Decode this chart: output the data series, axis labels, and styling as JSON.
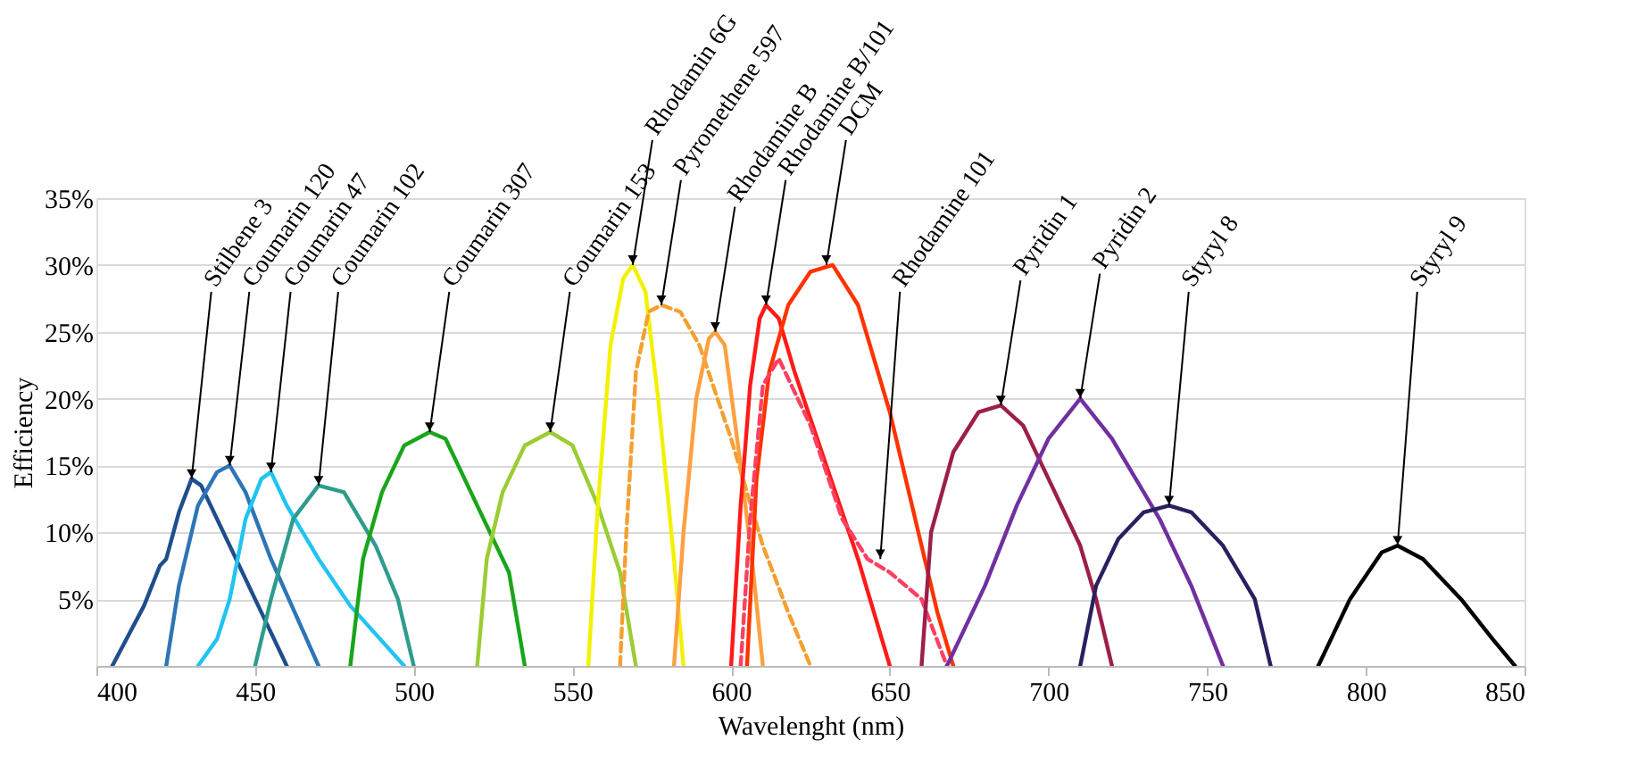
{
  "chart_data": {
    "type": "line",
    "xlabel": "Wavelenght (nm)",
    "ylabel": "Efficiency",
    "xlim": [
      400,
      850
    ],
    "xticks": [
      400,
      450,
      500,
      550,
      600,
      650,
      700,
      750,
      800,
      850
    ],
    "ylim": [
      0,
      35
    ],
    "yticks": [
      {
        "value": 0,
        "label": null
      },
      {
        "value": 5,
        "label": "5%"
      },
      {
        "value": 10,
        "label": "10%"
      },
      {
        "value": 15,
        "label": "15%"
      },
      {
        "value": 20,
        "label": "20%"
      },
      {
        "value": 25,
        "label": "25%"
      },
      {
        "value": 30,
        "label": "30%"
      },
      {
        "value": 35,
        "label": "35%"
      }
    ],
    "grid": "y",
    "legend": false,
    "marker": "none",
    "series": [
      {
        "color": "#1f4e8c",
        "x": [
          405,
          415,
          420,
          422,
          426,
          430,
          433,
          440,
          450,
          460
        ],
        "values": [
          0,
          4.5,
          7.5,
          8,
          11.5,
          14,
          13.5,
          10,
          5,
          0
        ]
      },
      {
        "color": "#2e75b6",
        "x": [
          422,
          426,
          432,
          438,
          442,
          447,
          455,
          470
        ],
        "values": [
          0,
          6,
          12,
          14.5,
          15,
          13,
          8,
          0
        ]
      },
      {
        "color": "#21c4f0",
        "x": [
          432,
          438,
          442,
          447,
          452,
          455,
          460,
          470,
          480,
          497
        ],
        "values": [
          0,
          2,
          5,
          11,
          14,
          14.5,
          12,
          8,
          4.5,
          0
        ]
      },
      {
        "color": "#2e9c8c",
        "x": [
          450,
          455,
          462,
          470,
          478,
          488,
          495,
          500
        ],
        "values": [
          0,
          5,
          11,
          13.5,
          13,
          9,
          5,
          0
        ]
      },
      {
        "color": "#1aa51a",
        "x": [
          480,
          484,
          490,
          497,
          505,
          510,
          520,
          530,
          535
        ],
        "values": [
          0,
          8,
          13,
          16.5,
          17.5,
          17,
          12,
          7,
          0
        ]
      },
      {
        "color": "#9acd32",
        "x": [
          520,
          523,
          528,
          535,
          543,
          550,
          558,
          565,
          570
        ],
        "values": [
          0,
          8,
          13,
          16.5,
          17.5,
          16.5,
          12,
          7,
          0
        ]
      },
      {
        "color": "#f2f200",
        "x": [
          555,
          558,
          562,
          566,
          569,
          573,
          577,
          582,
          585
        ],
        "values": [
          0,
          12,
          24,
          29,
          30,
          28,
          20,
          8,
          0
        ]
      },
      {
        "color": "#f4a030",
        "line_style": "dashed",
        "x": [
          565,
          567,
          570,
          574,
          578,
          584,
          590,
          600,
          610,
          618,
          625
        ],
        "values": [
          0,
          10,
          22,
          26.5,
          27,
          26.5,
          24,
          17,
          9,
          4,
          0
        ]
      },
      {
        "color": "#ffa040",
        "x": [
          582,
          585,
          589,
          593,
          595,
          598,
          603,
          607,
          610
        ],
        "values": [
          0,
          10,
          20,
          24.5,
          25,
          24,
          15,
          7,
          0
        ]
      },
      {
        "color": "#ff1a1a",
        "x": [
          600,
          603,
          606,
          609,
          611,
          615,
          620,
          630,
          640,
          650
        ],
        "values": [
          0,
          12,
          21,
          26,
          27,
          26,
          22,
          15,
          8,
          0
        ]
      },
      {
        "color": "#ff3300",
        "x": [
          605,
          608,
          612,
          618,
          625,
          632,
          640,
          650,
          660,
          665,
          670
        ],
        "values": [
          0,
          14,
          22,
          27,
          29.5,
          30,
          27,
          19,
          9,
          4,
          0
        ]
      },
      {
        "color": "#ff4060",
        "line_style": "dashed",
        "x": [
          603,
          606,
          610,
          615,
          625,
          635,
          643,
          650,
          660,
          668
        ],
        "values": [
          0,
          11,
          21,
          23,
          18,
          11,
          8,
          7,
          5,
          0
        ]
      },
      {
        "color": "#9c1f4a",
        "x": [
          660,
          663,
          670,
          678,
          685,
          692,
          700,
          710,
          715,
          720
        ],
        "values": [
          0,
          10,
          16,
          19,
          19.5,
          18,
          14,
          9,
          5,
          0
        ]
      },
      {
        "color": "#7030a0",
        "x": [
          668,
          680,
          690,
          700,
          710,
          720,
          735,
          745,
          755
        ],
        "values": [
          0,
          6,
          12,
          17,
          20,
          17,
          11,
          6,
          0
        ]
      },
      {
        "color": "#2a2060",
        "x": [
          710,
          715,
          722,
          730,
          738,
          745,
          755,
          765,
          770
        ],
        "values": [
          0,
          6,
          9.5,
          11.5,
          12,
          11.5,
          9,
          5,
          0
        ]
      },
      {
        "color": "#000000",
        "x": [
          785,
          795,
          805,
          810,
          818,
          830,
          840,
          847
        ],
        "values": [
          0,
          5,
          8.5,
          9,
          8,
          5,
          2,
          0
        ]
      }
    ],
    "annotations": [
      {
        "text": "Stilbene 3",
        "x": 430,
        "y": 14
      },
      {
        "text": "Coumarin 120",
        "x": 442,
        "y": 15
      },
      {
        "text": "Coumarin 47",
        "x": 455,
        "y": 14.5
      },
      {
        "text": "Coumarin 102",
        "x": 470,
        "y": 13.5
      },
      {
        "text": "Coumarin 307",
        "x": 505,
        "y": 17.5
      },
      {
        "text": "Coumarin 153",
        "x": 543,
        "y": 17.5
      },
      {
        "text": "Rhodamin 6G",
        "x": 569,
        "y": 30
      },
      {
        "text": "Pyromethene 597",
        "x": 578,
        "y": 27
      },
      {
        "text": "Rhodamine B",
        "x": 595,
        "y": 25
      },
      {
        "text": "Rhodamine B/101",
        "x": 611,
        "y": 27
      },
      {
        "text": "DCM",
        "x": 630,
        "y": 30
      },
      {
        "text": "Rhodamine 101",
        "x": 647,
        "y": 8
      },
      {
        "text": "Pyridin 1",
        "x": 685,
        "y": 19.5
      },
      {
        "text": "Pyridin 2",
        "x": 710,
        "y": 20
      },
      {
        "text": "Styryl 8",
        "x": 738,
        "y": 12
      },
      {
        "text": "Styryl 9",
        "x": 810,
        "y": 9
      }
    ]
  }
}
